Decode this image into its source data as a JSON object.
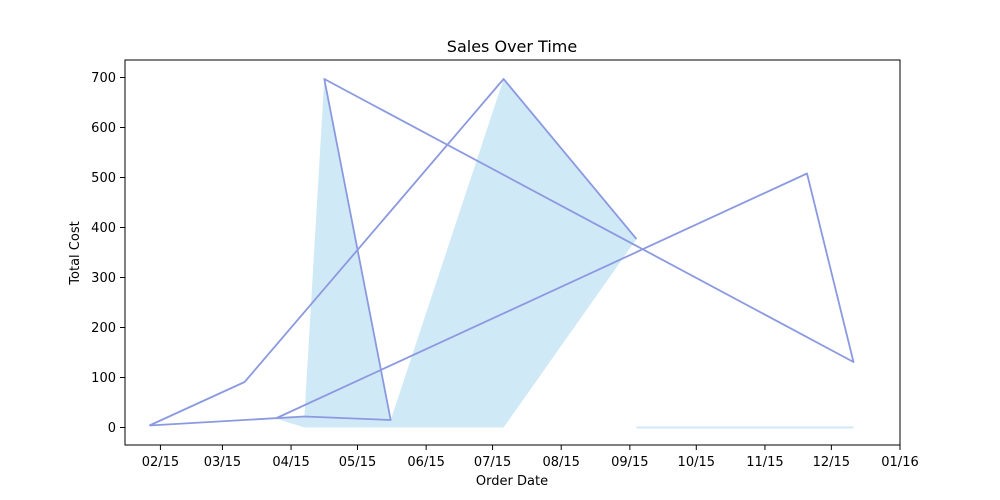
{
  "chart_data": {
    "type": "area",
    "title": "Sales Over Time",
    "xlabel": "Order Date",
    "ylabel": "Total Cost",
    "x_tick_labels": [
      "02/15",
      "03/15",
      "04/15",
      "05/15",
      "06/15",
      "07/15",
      "08/15",
      "09/15",
      "10/15",
      "11/15",
      "12/15",
      "01/16"
    ],
    "y_tick_labels": [
      "0",
      "100",
      "200",
      "300",
      "400",
      "500",
      "600",
      "700"
    ],
    "ylim": [
      -35,
      735
    ],
    "xlim": [
      "2015-01-30",
      "2016-01-15"
    ],
    "grid": false,
    "line_color": "#8b9ae0",
    "fill_color": "#d0e9f6",
    "series": [
      {
        "x": [
          "2015-02-10",
          "2015-03-25",
          "2015-04-08",
          "2015-04-21",
          "2015-04-30",
          "2015-05-30",
          "2015-07-20",
          "2015-09-18",
          "2015-09-18",
          "2015-12-04",
          "2015-12-25"
        ],
        "y": [
          4,
          91,
          18,
          22,
          697,
          15,
          697,
          377,
          0,
          0,
          0
        ],
        "fill_to": [
          4,
          91,
          18,
          0,
          0,
          0,
          0,
          377,
          0,
          0,
          0
        ]
      }
    ],
    "line_points": {
      "x": [
        "2015-02-10",
        "2015-03-25",
        "2015-07-20",
        "2015-09-18"
      ],
      "y": [
        4,
        91,
        697,
        377
      ]
    },
    "line2": {
      "x": [
        "2015-02-10",
        "2015-04-21",
        "2015-05-30",
        "2015-04-30",
        "2015-12-25",
        "2015-12-04",
        "2015-04-08"
      ],
      "y": [
        4,
        22,
        15,
        697,
        131,
        508,
        18
      ]
    }
  }
}
